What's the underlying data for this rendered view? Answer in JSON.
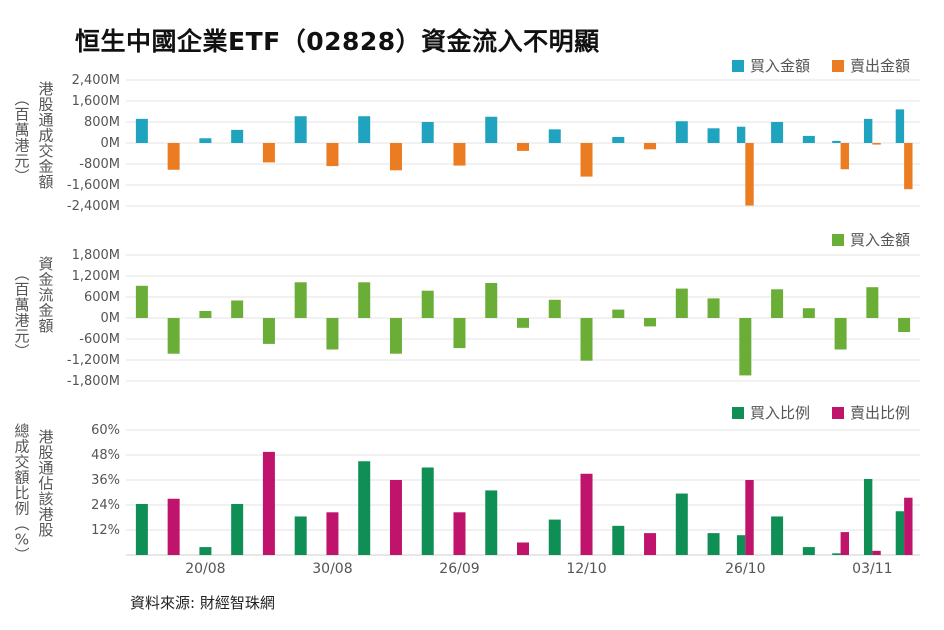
{
  "title": "恒生中國企業ETF（02828）資金流入不明顯",
  "source": "資料來源: 財經智珠網",
  "colors": {
    "buy_amount": "#20a3bf",
    "sell_amount": "#ec7c22",
    "net_flow": "#6aad37",
    "buy_ratio": "#0f8f55",
    "sell_ratio": "#c0136b"
  },
  "chart_data": [
    {
      "type": "bar",
      "ylabel": "港股通成交金額（百萬港元）",
      "yticks": [
        "2,400M",
        "1,600M",
        "800M",
        "0M",
        "-800M",
        "-1,600M",
        "-2,400M"
      ],
      "ylim": [
        -2400,
        2400
      ],
      "series": [
        {
          "name": "買入金額",
          "color_key": "buy_amount",
          "values": [
            920,
            null,
            180,
            500,
            null,
            1020,
            null,
            1020,
            null,
            800,
            null,
            1000,
            null,
            520,
            null,
            230,
            null,
            830,
            560,
            620,
            800,
            270,
            80,
            920,
            1280
          ]
        },
        {
          "name": "賣出金額",
          "color_key": "sell_amount",
          "values": [
            null,
            -1020,
            null,
            null,
            -740,
            null,
            -880,
            null,
            -1040,
            null,
            -860,
            null,
            -300,
            null,
            -1280,
            null,
            -240,
            null,
            null,
            -2380,
            null,
            null,
            -1000,
            -60,
            -1760
          ]
        }
      ]
    },
    {
      "type": "bar",
      "ylabel": "資金流金額（百萬港元）",
      "yticks": [
        "1,800M",
        "1,200M",
        "600M",
        "0M",
        "-600M",
        "-1,200M",
        "-1,800M"
      ],
      "ylim": [
        -1800,
        1800
      ],
      "series": [
        {
          "name": "買入金額",
          "color_key": "net_flow",
          "values": [
            920,
            -1020,
            200,
            500,
            -740,
            1020,
            -900,
            1020,
            -1020,
            780,
            -860,
            1000,
            -280,
            520,
            -1220,
            240,
            -240,
            840,
            560,
            -1640,
            820,
            280,
            -900,
            880,
            -400
          ]
        }
      ]
    },
    {
      "type": "bar",
      "ylabel": "港股通佔該港股總成交額比例（%）",
      "yticks": [
        "60%",
        "48%",
        "36%",
        "24%",
        "12%"
      ],
      "ylim": [
        0,
        60
      ],
      "xticks": [
        {
          "label": "20/08",
          "at": 2.5
        },
        {
          "label": "30/08",
          "at": 6.5
        },
        {
          "label": "26/09",
          "at": 10.5
        },
        {
          "label": "12/10",
          "at": 14.5
        },
        {
          "label": "26/10",
          "at": 19.5
        },
        {
          "label": "03/11",
          "at": 23.5
        }
      ],
      "series": [
        {
          "name": "買入比例",
          "color_key": "buy_ratio",
          "values": [
            24.5,
            0,
            3.8,
            24.5,
            0,
            18.5,
            0,
            45,
            0,
            42,
            0,
            31,
            0,
            17,
            0,
            14,
            0,
            29.5,
            10.5,
            9.5,
            18.5,
            3.8,
            0.8,
            36.5,
            21
          ]
        },
        {
          "name": "賣出比例",
          "color_key": "sell_ratio",
          "values": [
            0,
            27,
            0,
            0,
            49.5,
            0,
            20.5,
            0,
            36,
            0,
            20.5,
            0,
            6,
            0,
            39,
            0,
            10.5,
            0,
            0,
            36,
            0,
            0,
            11,
            2,
            27.5
          ]
        }
      ]
    }
  ]
}
